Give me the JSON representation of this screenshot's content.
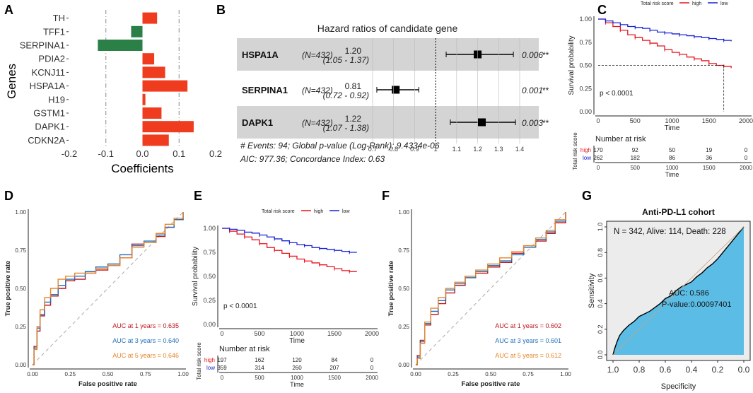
{
  "panel_labels": [
    "A",
    "B",
    "C",
    "D",
    "E",
    "F",
    "G"
  ],
  "chart_data": [
    {
      "panel": "A",
      "type": "bar",
      "orientation": "horizontal",
      "xlabel": "Coefficients",
      "ylabel": "Genes",
      "xlim": [
        -0.2,
        0.2
      ],
      "xticks": [
        -0.2,
        -0.1,
        0.0,
        0.1,
        0.2
      ],
      "xtick_labels": [
        "-0.2",
        "-0.1",
        "0.0",
        "0.1",
        "0.2"
      ],
      "reference_lines": [
        -0.1,
        0.1
      ],
      "categories": [
        "TH",
        "TFF1",
        "SERPINA1",
        "PDIA2",
        "KCNJ11",
        "HSPA1A",
        "H19",
        "GSTM1",
        "DAPK1",
        "CDKN2A"
      ],
      "values": [
        0.04,
        -0.031,
        -0.122,
        0.032,
        0.062,
        0.123,
        0.008,
        0.052,
        0.14,
        0.072
      ],
      "colors": {
        "positive": "#f03c1e",
        "negative": "#2a8046"
      }
    },
    {
      "panel": "B",
      "type": "forest",
      "title": "Hazard ratios of candidate gene",
      "rows": [
        {
          "gene": "HSPA1A",
          "n": "(N=432)",
          "hr": 1.2,
          "hr_label": "1.20",
          "ci_label": "(1.05 - 1.37)",
          "ci": [
            1.05,
            1.37
          ],
          "p_label": "0.006",
          "stars": "**",
          "shaded": true
        },
        {
          "gene": "SERPINA1",
          "n": "(N=432)",
          "hr": 0.81,
          "hr_label": "0.81",
          "ci_label": "(0.72 - 0.92)",
          "ci": [
            0.72,
            0.92
          ],
          "p_label": "0.001",
          "stars": "**",
          "shaded": false
        },
        {
          "gene": "DAPK1",
          "n": "(N=432)",
          "hr": 1.22,
          "hr_label": "1.22",
          "ci_label": "(1.07 - 1.38)",
          "ci": [
            1.07,
            1.38
          ],
          "p_label": "0.003",
          "stars": "**",
          "shaded": true
        }
      ],
      "xticks": [
        0.7,
        0.8,
        0.9,
        1,
        1.1,
        1.2,
        1.3,
        1.4
      ],
      "xtick_labels": [
        "0.7",
        "0.8",
        "0.9",
        "1",
        "1.1",
        "1.2",
        "1.3",
        "1.4"
      ],
      "reference": 1,
      "footnote1": "# Events: 94; Global p-value (Log-Rank): 9.4334e-06",
      "footnote2": "AIC: 977.36; Concordance Index: 0.63"
    },
    {
      "panel": "C",
      "type": "line",
      "subtype": "kaplan-meier",
      "legend_title": "Total risk score",
      "series": [
        {
          "name": "high",
          "color": "#e8141e",
          "x": [
            0,
            100,
            200,
            300,
            400,
            500,
            600,
            700,
            800,
            900,
            1000,
            1100,
            1200,
            1300,
            1400,
            1500,
            1600,
            1700,
            1800
          ],
          "values": [
            1.0,
            0.96,
            0.92,
            0.88,
            0.83,
            0.8,
            0.77,
            0.74,
            0.71,
            0.67,
            0.64,
            0.62,
            0.59,
            0.57,
            0.55,
            0.52,
            0.5,
            0.49,
            0.47
          ]
        },
        {
          "name": "low",
          "color": "#1a22d6",
          "x": [
            0,
            100,
            200,
            300,
            400,
            500,
            600,
            700,
            800,
            900,
            1000,
            1100,
            1200,
            1300,
            1400,
            1500,
            1600,
            1700,
            1800
          ],
          "values": [
            1.0,
            0.98,
            0.96,
            0.94,
            0.92,
            0.91,
            0.9,
            0.88,
            0.86,
            0.85,
            0.84,
            0.83,
            0.82,
            0.81,
            0.8,
            0.79,
            0.78,
            0.77,
            0.76
          ]
        }
      ],
      "xlabel": "Time",
      "ylabel": "Survival probability",
      "xlim": [
        0,
        2000
      ],
      "ylim": [
        0,
        1
      ],
      "xticks": [
        0,
        500,
        1000,
        1500,
        2000
      ],
      "xtick_labels": [
        "0",
        "500",
        "1000",
        "1500",
        "2000"
      ],
      "yticks": [
        0,
        0.25,
        0.5,
        0.75,
        1
      ],
      "ytick_labels": [
        "0.00",
        "0.25",
        "0.50",
        "0.75",
        "1.00"
      ],
      "median_time": 1700,
      "pvalue": "p < 0.0001",
      "risk_table": {
        "title": "Number at risk",
        "ylabel": "Total risk score",
        "groups": [
          {
            "name": "high",
            "color": "#e8141e",
            "counts": [
              "170",
              "92",
              "50",
              "19",
              "0"
            ]
          },
          {
            "name": "low",
            "color": "#1a22d6",
            "counts": [
              "262",
              "182",
              "86",
              "36",
              "0"
            ]
          }
        ],
        "xtick_labels": [
          "0",
          "500",
          "1000",
          "1500",
          "2000"
        ],
        "xlabel": "Time"
      }
    },
    {
      "panel": "D",
      "type": "line",
      "subtype": "roc",
      "xlabel": "False positive rate",
      "ylabel": "True positive rate",
      "xlim": [
        0,
        1
      ],
      "ylim": [
        0,
        1
      ],
      "ticks": [
        0,
        0.25,
        0.5,
        0.75,
        1
      ],
      "tick_labels": [
        "0.00",
        "0.25",
        "0.50",
        "0.75",
        "1.00"
      ],
      "series": [
        {
          "name": "AUC at 1 years = 0.635",
          "color": "#c0141c",
          "x": [
            0,
            0.01,
            0.03,
            0.05,
            0.08,
            0.12,
            0.17,
            0.22,
            0.28,
            0.35,
            0.42,
            0.5,
            0.58,
            0.66,
            0.74,
            0.82,
            0.88,
            0.94,
            1
          ],
          "values": [
            0,
            0.12,
            0.22,
            0.32,
            0.39,
            0.45,
            0.5,
            0.55,
            0.56,
            0.6,
            0.62,
            0.65,
            0.7,
            0.79,
            0.8,
            0.84,
            0.9,
            0.95,
            1
          ]
        },
        {
          "name": "AUC at 3 years = 0.640",
          "color": "#1f6fb8",
          "x": [
            0,
            0.01,
            0.03,
            0.05,
            0.08,
            0.12,
            0.17,
            0.22,
            0.28,
            0.35,
            0.42,
            0.5,
            0.58,
            0.66,
            0.74,
            0.82,
            0.88,
            0.94,
            1
          ],
          "values": [
            0,
            0.11,
            0.24,
            0.33,
            0.41,
            0.46,
            0.52,
            0.56,
            0.58,
            0.61,
            0.64,
            0.66,
            0.72,
            0.78,
            0.81,
            0.85,
            0.9,
            0.95,
            1
          ]
        },
        {
          "name": "AUC at 5 years = 0.646",
          "color": "#e6852a",
          "x": [
            0,
            0.01,
            0.03,
            0.05,
            0.08,
            0.12,
            0.17,
            0.22,
            0.28,
            0.35,
            0.42,
            0.5,
            0.58,
            0.66,
            0.74,
            0.82,
            0.88,
            0.94,
            1
          ],
          "values": [
            0,
            0.1,
            0.25,
            0.36,
            0.44,
            0.5,
            0.56,
            0.58,
            0.6,
            0.6,
            0.63,
            0.65,
            0.7,
            0.77,
            0.8,
            0.86,
            0.92,
            0.96,
            1
          ]
        }
      ]
    },
    {
      "panel": "E",
      "type": "line",
      "subtype": "kaplan-meier",
      "legend_title": "Total risk score",
      "series": [
        {
          "name": "high",
          "color": "#e8141e",
          "x": [
            0,
            100,
            200,
            300,
            400,
            500,
            600,
            700,
            800,
            900,
            1000,
            1100,
            1200,
            1300,
            1400,
            1500,
            1600,
            1700,
            1800
          ],
          "values": [
            1.0,
            0.97,
            0.94,
            0.91,
            0.88,
            0.84,
            0.8,
            0.77,
            0.74,
            0.71,
            0.68,
            0.66,
            0.64,
            0.62,
            0.6,
            0.58,
            0.56,
            0.55,
            0.55
          ]
        },
        {
          "name": "low",
          "color": "#1a22d6",
          "x": [
            0,
            100,
            200,
            300,
            400,
            500,
            600,
            700,
            800,
            900,
            1000,
            1100,
            1200,
            1300,
            1400,
            1500,
            1600,
            1700,
            1800
          ],
          "values": [
            1.0,
            0.99,
            0.98,
            0.96,
            0.95,
            0.93,
            0.91,
            0.89,
            0.87,
            0.85,
            0.83,
            0.82,
            0.8,
            0.79,
            0.78,
            0.77,
            0.76,
            0.75,
            0.75
          ]
        }
      ],
      "xlabel": "Time",
      "ylabel": "Survival probability",
      "xlim": [
        0,
        2000
      ],
      "ylim": [
        0,
        1
      ],
      "xticks": [
        0,
        500,
        1000,
        1500,
        2000
      ],
      "xtick_labels": [
        "0",
        "500",
        "1000",
        "1500",
        "2000"
      ],
      "yticks": [
        0,
        0.25,
        0.5,
        0.75,
        1
      ],
      "ytick_labels": [
        "0.00",
        "0.25",
        "0.50",
        "0.75",
        "1.00"
      ],
      "pvalue": "p < 0.0001",
      "risk_table": {
        "title": "Number at risk",
        "ylabel": "Total risk score",
        "groups": [
          {
            "name": "high",
            "color": "#e8141e",
            "counts": [
              "197",
              "162",
              "120",
              "84",
              "0"
            ]
          },
          {
            "name": "low",
            "color": "#1a22d6",
            "counts": [
              "359",
              "314",
              "260",
              "207",
              "0"
            ]
          }
        ],
        "xtick_labels": [
          "0",
          "500",
          "1000",
          "1500",
          "2000"
        ],
        "xlabel": "Time"
      }
    },
    {
      "panel": "F",
      "type": "line",
      "subtype": "roc",
      "xlabel": "False positive rate",
      "ylabel": "True positive rate",
      "xlim": [
        0,
        1
      ],
      "ylim": [
        0,
        1
      ],
      "ticks": [
        0,
        0.25,
        0.5,
        0.75,
        1
      ],
      "tick_labels": [
        "0.00",
        "0.25",
        "0.50",
        "0.75",
        "1.00"
      ],
      "series": [
        {
          "name": "AUC at 1 years = 0.602",
          "color": "#c0141c",
          "x": [
            0,
            0.01,
            0.03,
            0.06,
            0.1,
            0.15,
            0.2,
            0.26,
            0.33,
            0.4,
            0.48,
            0.56,
            0.64,
            0.72,
            0.8,
            0.87,
            0.93,
            1
          ],
          "values": [
            0,
            0.06,
            0.16,
            0.26,
            0.33,
            0.4,
            0.47,
            0.52,
            0.58,
            0.6,
            0.64,
            0.67,
            0.73,
            0.77,
            0.81,
            0.86,
            0.93,
            1
          ]
        },
        {
          "name": "AUC at 3 years = 0.601",
          "color": "#1f6fb8",
          "x": [
            0,
            0.01,
            0.03,
            0.06,
            0.1,
            0.15,
            0.2,
            0.26,
            0.33,
            0.4,
            0.48,
            0.56,
            0.64,
            0.72,
            0.8,
            0.87,
            0.93,
            1
          ],
          "values": [
            0,
            0.05,
            0.15,
            0.27,
            0.35,
            0.42,
            0.49,
            0.53,
            0.57,
            0.61,
            0.65,
            0.68,
            0.72,
            0.77,
            0.82,
            0.87,
            0.94,
            1
          ]
        },
        {
          "name": "AUC at 5 years = 0.612",
          "color": "#e6852a",
          "x": [
            0,
            0.01,
            0.03,
            0.06,
            0.1,
            0.15,
            0.2,
            0.26,
            0.33,
            0.4,
            0.48,
            0.56,
            0.64,
            0.72,
            0.8,
            0.87,
            0.93,
            1
          ],
          "values": [
            0,
            0.04,
            0.14,
            0.28,
            0.37,
            0.44,
            0.5,
            0.54,
            0.58,
            0.62,
            0.66,
            0.7,
            0.74,
            0.78,
            0.83,
            0.88,
            0.95,
            1
          ]
        }
      ]
    },
    {
      "panel": "G",
      "type": "line",
      "subtype": "roc-filled",
      "title": "Anti-PD-L1 cohort",
      "xlabel": "Specificity",
      "ylabel": "Sensitivity",
      "xlim": [
        1.0,
        0.0
      ],
      "ylim": [
        0,
        1
      ],
      "xticks": [
        1.0,
        0.8,
        0.6,
        0.4,
        0.2,
        0.0
      ],
      "xtick_labels": [
        "1.0",
        "0.8",
        "0.6",
        "0.4",
        "0.2",
        "0.0"
      ],
      "yticks": [
        0,
        0.2,
        0.4,
        0.6,
        0.8,
        1.0
      ],
      "ytick_labels": [
        "0.0",
        "0.2",
        "0.4",
        "0.6",
        "0.8",
        "1.0"
      ],
      "fill_color": "#5bbde6",
      "line_color": "#000000",
      "series": [
        {
          "name": "ROC",
          "specificity": [
            1.0,
            0.99,
            0.97,
            0.95,
            0.92,
            0.88,
            0.84,
            0.8,
            0.76,
            0.72,
            0.68,
            0.64,
            0.6,
            0.56,
            0.52,
            0.48,
            0.44,
            0.4,
            0.36,
            0.32,
            0.28,
            0.24,
            0.2,
            0.16,
            0.12,
            0.08,
            0.04,
            0.0
          ],
          "values": [
            0.0,
            0.04,
            0.1,
            0.15,
            0.19,
            0.23,
            0.26,
            0.3,
            0.32,
            0.34,
            0.37,
            0.4,
            0.44,
            0.46,
            0.5,
            0.53,
            0.55,
            0.57,
            0.61,
            0.64,
            0.68,
            0.71,
            0.75,
            0.8,
            0.85,
            0.9,
            0.95,
            1.0
          ]
        }
      ],
      "annotation": "N = 342, Alive: 114, Death: 228",
      "auc_label": "AUC: 0.586",
      "pvalue_label": "P-value:0.00097401"
    }
  ]
}
